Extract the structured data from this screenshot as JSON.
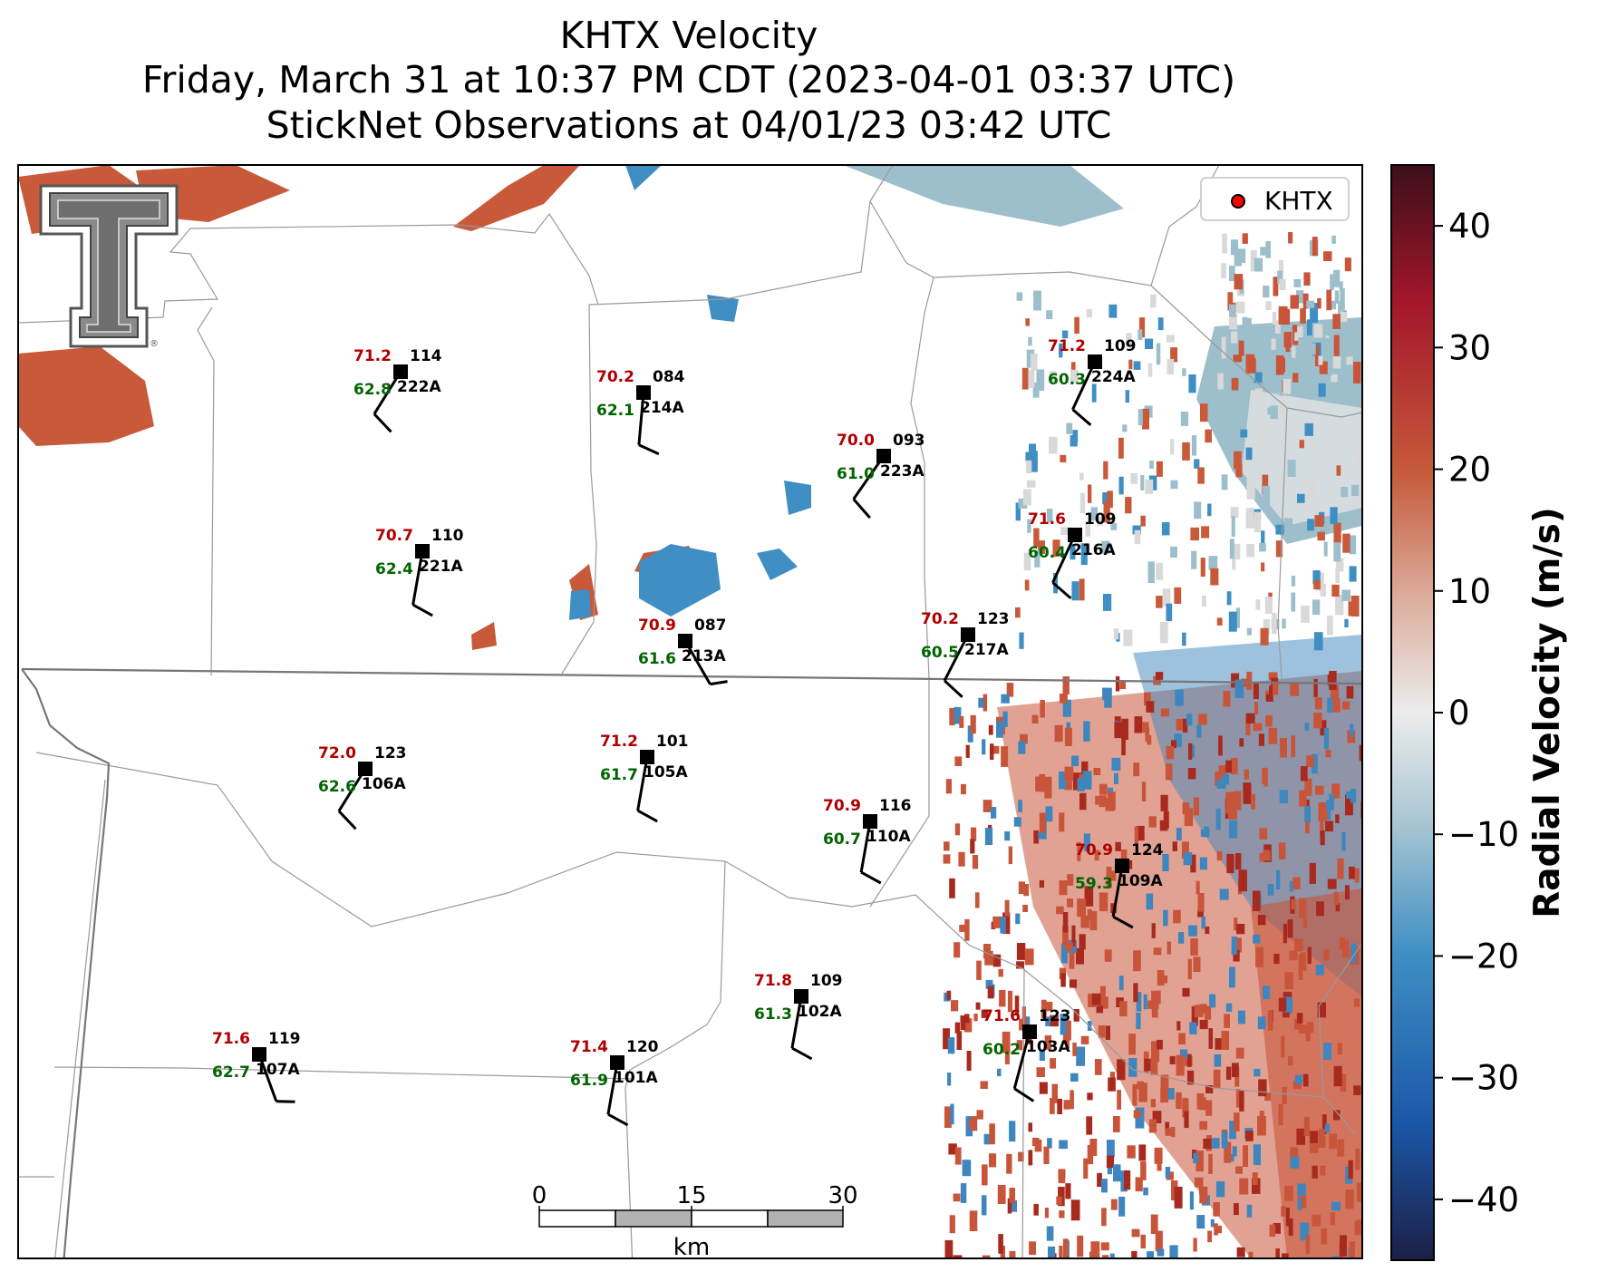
{
  "title": {
    "line1": "KHTX Velocity",
    "line2": "Friday, March 31 at 10:37 PM CDT (2023-04-01 03:37 UTC)",
    "line3": "StickNet Observations at 04/01/23 03:42 UTC"
  },
  "legend": {
    "label": "KHTX",
    "marker_color": "#ff0000"
  },
  "colorbar": {
    "label": "Radial Velocity (m/s)",
    "ticks": [
      "40",
      "30",
      "20",
      "10",
      "0",
      "−10",
      "−20",
      "−30",
      "−40"
    ],
    "range": [
      -45,
      45
    ],
    "colors": [
      "#1c1f46",
      "#1a57a8",
      "#3f8fc4",
      "#a9c6d3",
      "#ececec",
      "#ddb0a0",
      "#c65a3a",
      "#a3162a",
      "#3c0f19"
    ]
  },
  "scalebar": {
    "ticks": [
      "0",
      "15",
      "30"
    ],
    "unit": "km"
  },
  "colors": {
    "temperature": "#b00000",
    "dewpoint": "#006400",
    "label": "#000000"
  },
  "stations": [
    {
      "id": "222A",
      "temp": "71.2",
      "dew": "62.8",
      "dir": "114"
    },
    {
      "id": "214A",
      "temp": "70.2",
      "dew": "62.1",
      "dir": "084"
    },
    {
      "id": "223A",
      "temp": "70.0",
      "dew": "61.0",
      "dir": "093"
    },
    {
      "id": "224A",
      "temp": "71.2",
      "dew": "60.3",
      "dir": "109"
    },
    {
      "id": "221A",
      "temp": "70.7",
      "dew": "62.4",
      "dir": "110"
    },
    {
      "id": "216A",
      "temp": "71.6",
      "dew": "60.4",
      "dir": "109"
    },
    {
      "id": "213A",
      "temp": "70.9",
      "dew": "61.6",
      "dir": "087"
    },
    {
      "id": "217A",
      "temp": "70.2",
      "dew": "60.5",
      "dir": "123"
    },
    {
      "id": "106A",
      "temp": "72.0",
      "dew": "62.6",
      "dir": "123"
    },
    {
      "id": "105A",
      "temp": "71.2",
      "dew": "61.7",
      "dir": "101"
    },
    {
      "id": "110A",
      "temp": "70.9",
      "dew": "60.7",
      "dir": "116"
    },
    {
      "id": "109A",
      "temp": "70.9",
      "dew": "59.3",
      "dir": "124"
    },
    {
      "id": "102A",
      "temp": "71.8",
      "dew": "61.3",
      "dir": "109"
    },
    {
      "id": "103A",
      "temp": "71.6",
      "dew": "60.2",
      "dir": "123"
    },
    {
      "id": "107A",
      "temp": "71.6",
      "dew": "62.7",
      "dir": "119"
    },
    {
      "id": "101A",
      "temp": "71.4",
      "dew": "61.9",
      "dir": "120"
    }
  ]
}
